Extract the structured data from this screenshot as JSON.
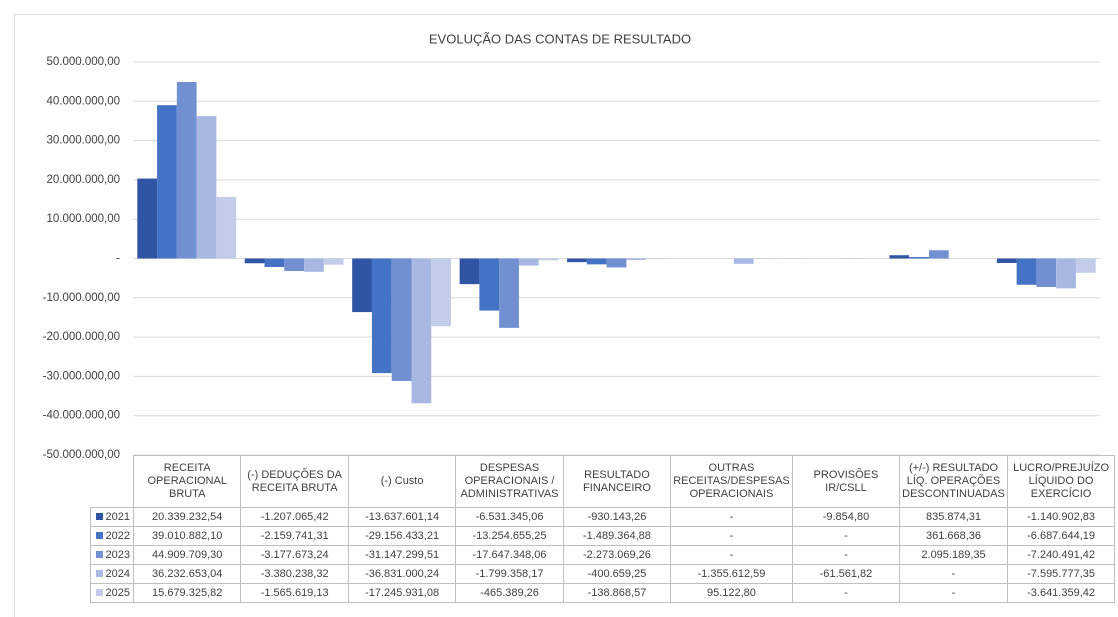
{
  "chart_data": {
    "type": "bar",
    "title": "EVOLUÇÃO DAS CONTAS DE RESULTADO",
    "categories": [
      "RECEITA OPERACIONAL BRUTA",
      "(-) DEDUÇÕES DA RECEITA BRUTA",
      "(-) Custo",
      "DESPESAS OPERACIONAIS / ADMINISTRATIVAS",
      "RESULTADO FINANCEIRO",
      "OUTRAS RECEITAS/DESPESAS OPERACIONAIS",
      "PROVISÕES IR/CSLL",
      "(+/-) RESULTADO LÍQ. OPERAÇÕES DESCONTINUADAS",
      "LUCRO/PREJUÍZO LÍQUIDO DO EXERCÍCIO"
    ],
    "series": [
      {
        "name": "2021",
        "color": "#2f55a4",
        "values": [
          20339232.54,
          -1207065.42,
          -13637601.14,
          -6531345.06,
          -930143.26,
          null,
          -9854.8,
          835874.31,
          -1140902.83
        ],
        "value_labels": [
          "20.339.232,54",
          "-1.207.065,42",
          "-13.637.601,14",
          "-6.531.345,06",
          "-930.143,26",
          "-",
          "-9.854,80",
          "835.874,31",
          "-1.140.902,83"
        ]
      },
      {
        "name": "2022",
        "color": "#4472c4",
        "values": [
          39010882.1,
          -2159741.31,
          -29156433.21,
          -13254655.25,
          -1489364.88,
          null,
          null,
          361668.36,
          -6687644.19
        ],
        "value_labels": [
          "39.010.882,10",
          "-2.159.741,31",
          "-29.156.433,21",
          "-13.254.655,25",
          "-1.489.364,88",
          "-",
          "-",
          "361.668,36",
          "-6.687.644,19"
        ]
      },
      {
        "name": "2023",
        "color": "#7090d2",
        "values": [
          44909709.3,
          -3177673.24,
          -31147299.51,
          -17647348.06,
          -2273069.26,
          null,
          null,
          2095189.35,
          -7240491.42
        ],
        "value_labels": [
          "44.909.709,30",
          "-3.177.673,24",
          "-31.147.299,51",
          "-17.647.348,06",
          "-2.273.069,26",
          "-",
          "-",
          "2.095.189,35",
          "-7.240.491,42"
        ]
      },
      {
        "name": "2024",
        "color": "#a8b8e3",
        "values": [
          36232653.04,
          -3380238.32,
          -36831000.24,
          -1799358.17,
          -400659.25,
          -1355612.59,
          -61561.82,
          null,
          -7595777.35
        ],
        "value_labels": [
          "36.232.653,04",
          "-3.380.238,32",
          "-36.831.000,24",
          "-1.799.358,17",
          "-400.659,25",
          "-1.355.612,59",
          "-61.561,82",
          "-",
          "-7.595.777,35"
        ]
      },
      {
        "name": "2025",
        "color": "#c3cde9",
        "values": [
          15679325.82,
          -1565619.13,
          -17245931.08,
          -465389.26,
          -138868.57,
          95122.8,
          null,
          null,
          -3641359.42
        ],
        "value_labels": [
          "15.679.325,82",
          "-1.565.619,13",
          "-17.245.931,08",
          "-465.389,26",
          "-138.868,57",
          "95.122,80",
          "-",
          "-",
          "-3.641.359,42"
        ]
      }
    ],
    "ylim": [
      -50000000,
      50000000
    ],
    "yticks": [
      {
        "value": -50000000,
        "label": "-50.000.000,00"
      },
      {
        "value": -40000000,
        "label": "-40.000.000,00"
      },
      {
        "value": -30000000,
        "label": "-30.000.000,00"
      },
      {
        "value": -20000000,
        "label": "-20.000.000,00"
      },
      {
        "value": -10000000,
        "label": "-10.000.000,00"
      },
      {
        "value": 0,
        "label": "-"
      },
      {
        "value": 10000000,
        "label": "10.000.000,00"
      },
      {
        "value": 20000000,
        "label": "20.000.000,00"
      },
      {
        "value": 30000000,
        "label": "30.000.000,00"
      },
      {
        "value": 40000000,
        "label": "40.000.000,00"
      },
      {
        "value": 50000000,
        "label": "50.000.000,00"
      }
    ],
    "grid": true
  }
}
